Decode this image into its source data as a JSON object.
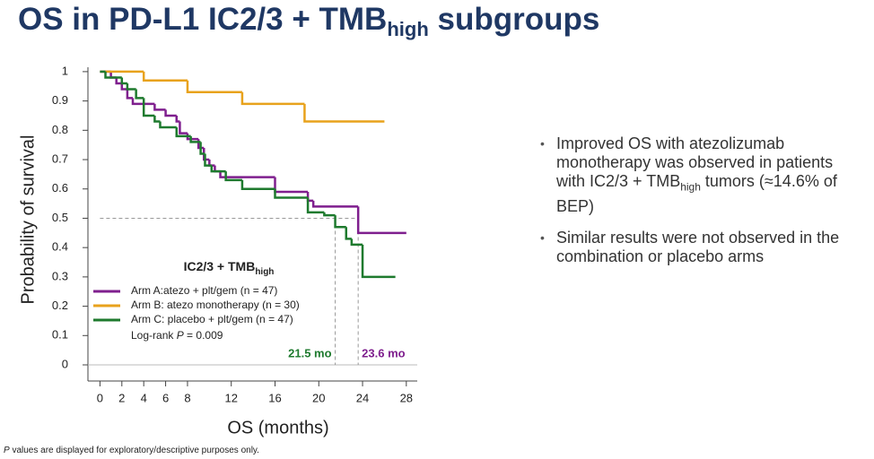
{
  "slide": {
    "title_parts": [
      "OS in PD-L1 IC2/3 + TMB",
      "high",
      " subgroups"
    ],
    "bullets": [
      [
        "Improved OS with atezolizumab monotherapy was observed in patients with IC2/3 + TMB",
        "high",
        " tumors (≈14.6% of BEP)"
      ],
      [
        "Similar results were not observed in the combination or placebo arms"
      ]
    ],
    "footnote_parts": [
      "P",
      " values are displayed for exploratory/descriptive purposes only."
    ]
  },
  "chart_data": {
    "type": "line",
    "step": true,
    "x_label": "OS (months)",
    "y_label": "Probability of survival",
    "xlim": [
      -1.1,
      29
    ],
    "ylim": [
      -0.055,
      1.015
    ],
    "xticks": [
      0,
      2,
      4,
      6,
      8,
      12,
      16,
      20,
      24,
      28
    ],
    "yticks": [
      0,
      0.1,
      0.2,
      0.3,
      0.4,
      0.5,
      0.6,
      0.7,
      0.8,
      0.9,
      1
    ],
    "grid": false,
    "legend_title_parts": [
      "IC2/3 + TMB",
      "high"
    ],
    "logrank_parts": [
      "Log-rank ",
      "P",
      " = 0.009"
    ],
    "reference_y": 0.5,
    "medians": [
      {
        "value": 21.5,
        "label": "21.5 mo",
        "color": "#1e7a2e"
      },
      {
        "value": 23.6,
        "label": "23.6 mo",
        "color": "#7f1f8e"
      }
    ],
    "series": [
      {
        "name": "Arm A:atezo + plt/gem (n = 47)",
        "color": "#7f1f8e",
        "x": [
          0,
          1,
          1.5,
          2,
          2.5,
          3,
          5,
          6,
          7,
          7.3,
          8,
          9,
          9.5,
          10,
          10.5,
          11,
          16,
          19,
          19.5,
          23.6,
          28
        ],
        "values": [
          1,
          0.98,
          0.96,
          0.94,
          0.91,
          0.89,
          0.87,
          0.85,
          0.83,
          0.79,
          0.77,
          0.74,
          0.7,
          0.68,
          0.66,
          0.64,
          0.59,
          0.56,
          0.54,
          0.45,
          0.45
        ]
      },
      {
        "name": "Arm B: atezo monotherapy (n = 30)",
        "color": "#e8a21c",
        "x": [
          0,
          4,
          8,
          13,
          18.7,
          26
        ],
        "values": [
          1,
          0.97,
          0.93,
          0.89,
          0.83,
          0.83
        ]
      },
      {
        "name": "Arm C: placebo + plt/gem (n = 47)",
        "color": "#1e7a2e",
        "x": [
          0,
          0.5,
          2,
          2.5,
          3.3,
          4,
          5,
          5.5,
          7,
          8.3,
          9.2,
          9.6,
          10.2,
          11.5,
          13,
          16,
          19,
          20.5,
          21.5,
          22.5,
          23,
          24,
          27
        ],
        "values": [
          1,
          0.98,
          0.96,
          0.94,
          0.91,
          0.85,
          0.83,
          0.81,
          0.78,
          0.76,
          0.72,
          0.68,
          0.66,
          0.63,
          0.6,
          0.57,
          0.52,
          0.51,
          0.47,
          0.43,
          0.41,
          0.3,
          0.3
        ]
      }
    ]
  }
}
